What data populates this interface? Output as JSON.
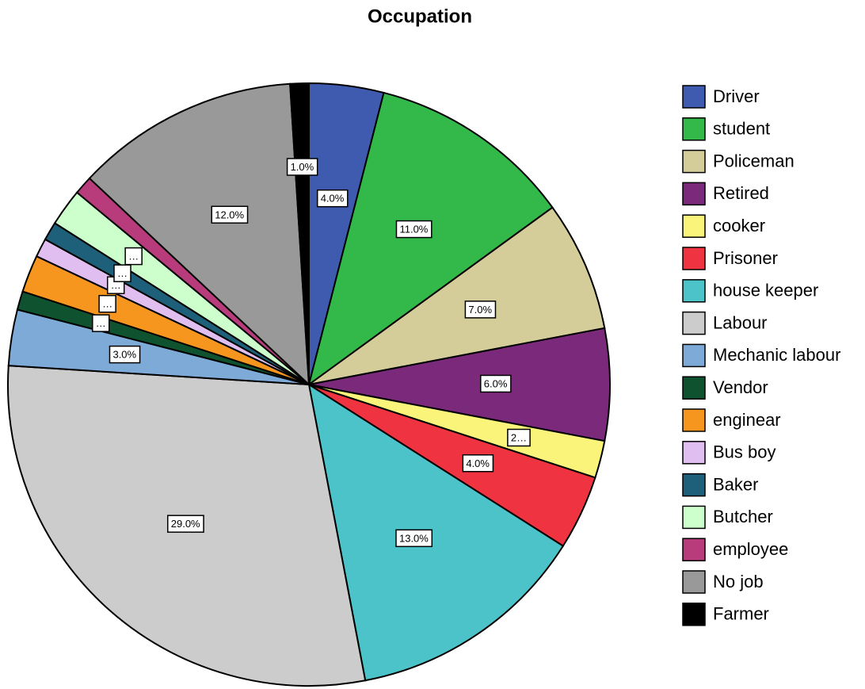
{
  "chart_data": {
    "type": "pie",
    "title": "Occupation",
    "categories": [
      "Driver",
      "student",
      "Policeman",
      "Retired",
      "cooker",
      "Prisoner",
      "house keeper",
      "Labour",
      "Mechanic labour",
      "Vendor",
      "enginear",
      "Bus boy",
      "Baker",
      "Butcher",
      "employee",
      "No job",
      "Farmer"
    ],
    "values": [
      4,
      11,
      7,
      6,
      2,
      4,
      13,
      29,
      3,
      1,
      2,
      1,
      1,
      2,
      1,
      12,
      1
    ],
    "value_labels": [
      "4.0%",
      "11.0%",
      "7.0%",
      "6.0%",
      "2…",
      "4.0%",
      "13.0%",
      "29.0%",
      "3.0%",
      "…",
      "…",
      "…",
      "…",
      "…",
      null,
      "12.0%",
      "1.0%"
    ],
    "colors": [
      "#3f5bb0",
      "#33b84a",
      "#d4cd99",
      "#7b2a7b",
      "#faf57a",
      "#ef3340",
      "#4bc3c9",
      "#cccccc",
      "#7eaad8",
      "#0f5230",
      "#f7961e",
      "#e0bff0",
      "#1e5f7a",
      "#ccffcc",
      "#b83c7c",
      "#999999",
      "#000000"
    ],
    "legend": "right"
  }
}
